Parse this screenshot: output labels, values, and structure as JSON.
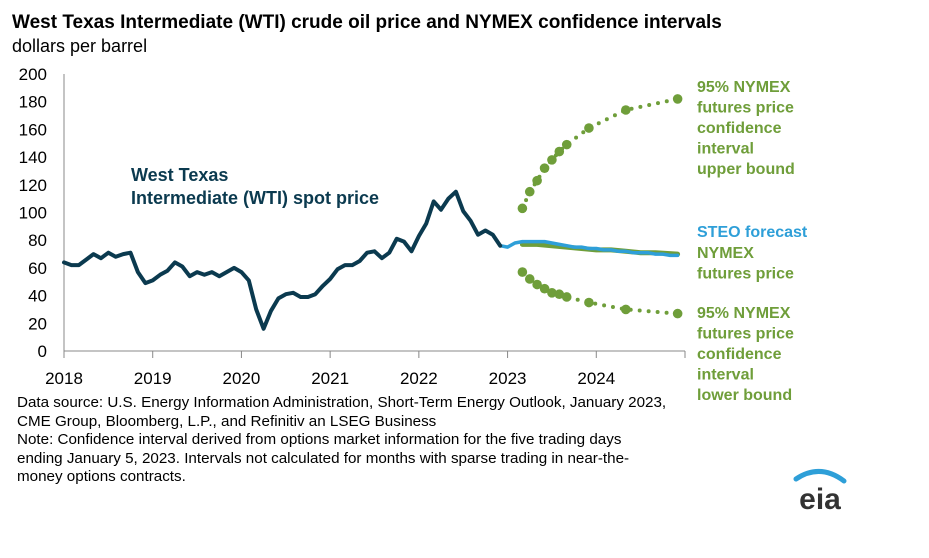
{
  "chart_data": {
    "type": "line",
    "title": "West Texas Intermediate (WTI) crude oil price and NYMEX confidence intervals",
    "subtitle": "dollars per barrel",
    "ylim": [
      0,
      200
    ],
    "xlim": [
      2018,
      2025
    ],
    "y_ticks": [
      "0",
      "20",
      "40",
      "60",
      "80",
      "100",
      "120",
      "140",
      "160",
      "180",
      "200"
    ],
    "x_ticks": [
      "2018",
      "2019",
      "2020",
      "2021",
      "2022",
      "2023",
      "2024"
    ],
    "grid": false,
    "series": [
      {
        "name": "West Texas Intermediate (WTI) spot price",
        "label_lines": [
          "West Texas",
          "Intermediate (WTI) spot price"
        ],
        "color": "#0b3a4f",
        "x": [
          2018.0,
          2018.083,
          2018.167,
          2018.25,
          2018.333,
          2018.417,
          2018.5,
          2018.583,
          2018.667,
          2018.75,
          2018.833,
          2018.917,
          2019.0,
          2019.083,
          2019.167,
          2019.25,
          2019.333,
          2019.417,
          2019.5,
          2019.583,
          2019.667,
          2019.75,
          2019.833,
          2019.917,
          2020.0,
          2020.083,
          2020.167,
          2020.25,
          2020.333,
          2020.417,
          2020.5,
          2020.583,
          2020.667,
          2020.75,
          2020.833,
          2020.917,
          2021.0,
          2021.083,
          2021.167,
          2021.25,
          2021.333,
          2021.417,
          2021.5,
          2021.583,
          2021.667,
          2021.75,
          2021.833,
          2021.917,
          2022.0,
          2022.083,
          2022.167,
          2022.25,
          2022.333,
          2022.417,
          2022.5,
          2022.583,
          2022.667,
          2022.75,
          2022.833,
          2022.917
        ],
        "values": [
          64,
          62,
          62,
          66,
          70,
          67,
          71,
          68,
          70,
          71,
          57,
          49,
          51,
          55,
          58,
          64,
          61,
          54,
          57,
          55,
          57,
          54,
          57,
          60,
          57,
          51,
          30,
          16,
          29,
          38,
          41,
          42,
          39,
          39,
          41,
          47,
          52,
          59,
          62,
          62,
          65,
          71,
          72,
          67,
          71,
          81,
          79,
          72,
          83,
          92,
          108,
          102,
          110,
          115,
          101,
          94,
          84,
          87,
          84,
          76
        ]
      },
      {
        "name": "STEO forecast",
        "color": "#2e9fd8",
        "x": [
          2022.917,
          2023.0,
          2023.083,
          2023.167,
          2023.25,
          2023.333,
          2023.417,
          2023.5,
          2023.583,
          2023.667,
          2023.75,
          2023.833,
          2023.917,
          2024.0,
          2024.083,
          2024.167,
          2024.25,
          2024.333,
          2024.417,
          2024.5,
          2024.583,
          2024.667,
          2024.75,
          2024.833,
          2024.917
        ],
        "values": [
          76,
          75,
          78,
          79,
          79,
          79,
          79,
          78,
          77,
          76,
          75,
          75,
          74,
          74,
          73,
          73,
          72,
          72,
          71,
          71,
          71,
          70,
          70,
          69,
          69
        ]
      },
      {
        "name": "NYMEX futures price",
        "label_lines": [
          "NYMEX",
          "futures price"
        ],
        "color": "#6f9e3a",
        "x": [
          2023.167,
          2023.333,
          2023.5,
          2023.667,
          2023.833,
          2024.0,
          2024.167,
          2024.333,
          2024.5,
          2024.667,
          2024.917
        ],
        "values": [
          77,
          77,
          76,
          75,
          74,
          73,
          73,
          72,
          71,
          71,
          70
        ]
      },
      {
        "name": "95% NYMEX futures price confidence interval upper bound",
        "label_lines": [
          "95% NYMEX",
          "futures price",
          "confidence",
          "interval",
          "upper bound"
        ],
        "color": "#6f9e3a",
        "x": [
          2023.167,
          2023.25,
          2023.333,
          2023.417,
          2023.5,
          2023.583,
          2023.667,
          2023.917,
          2024.333,
          2024.917
        ],
        "values": [
          103,
          115,
          123,
          132,
          138,
          144,
          149,
          161,
          174,
          182
        ]
      },
      {
        "name": "95% NYMEX futures price confidence interval lower bound",
        "label_lines": [
          "95% NYMEX",
          "futures price",
          "confidence",
          "interval",
          "lower bound"
        ],
        "color": "#6f9e3a",
        "x": [
          2023.167,
          2023.25,
          2023.333,
          2023.417,
          2023.5,
          2023.583,
          2023.667,
          2023.917,
          2024.333,
          2024.917
        ],
        "values": [
          57,
          52,
          48,
          45,
          42,
          41,
          39,
          35,
          30,
          27
        ]
      }
    ]
  },
  "steo_label": "STEO forecast",
  "notes": {
    "source_1": "Data source: U.S. Energy Information Administration, Short-Term Energy Outlook, January 2023,",
    "source_2": "CME Group, Bloomberg, L.P., and Refinitiv an LSEG Business",
    "note_1": "Note: Confidence interval derived from options market information for the five trading days",
    "note_2": "ending January 5, 2023. Intervals not calculated for months with sparse trading in near-the-",
    "note_3": "money options contracts."
  },
  "logo_text": "eia",
  "colors": {
    "wti": "#0b3a4f",
    "steo": "#2e9fd8",
    "nymex": "#6f9e3a"
  }
}
